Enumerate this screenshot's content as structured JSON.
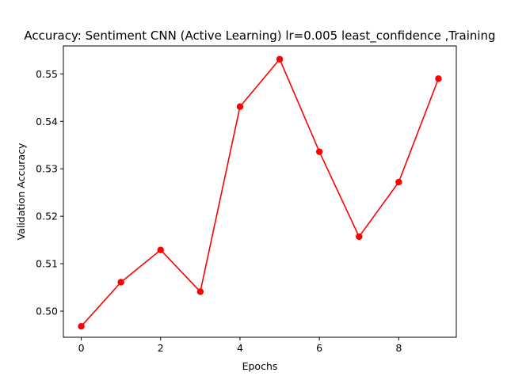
{
  "chart_data": {
    "type": "line",
    "title": "Accuracy: Sentiment CNN (Active Learning) lr=0.005 least_confidence ,Training",
    "xlabel": "Epochs",
    "ylabel": "Validation Accuracy",
    "x": [
      0,
      1,
      2,
      3,
      4,
      5,
      6,
      7,
      8,
      9
    ],
    "series": [
      {
        "values": [
          0.4968,
          0.5061,
          0.5129,
          0.5041,
          0.5431,
          0.5531,
          0.5336,
          0.5157,
          0.5272,
          0.549
        ],
        "color": "#ff0000",
        "marker": "circle"
      }
    ],
    "xlim": [
      -0.45,
      9.45
    ],
    "ylim": [
      0.4945,
      0.5559
    ],
    "xticks": [
      0,
      2,
      4,
      6,
      8
    ],
    "yticks": [
      0.5,
      0.51,
      0.52,
      0.53,
      0.54,
      0.55
    ],
    "xtick_labels": [
      "0",
      "2",
      "4",
      "6",
      "8"
    ],
    "ytick_labels": [
      "0.50",
      "0.51",
      "0.52",
      "0.53",
      "0.54",
      "0.55"
    ],
    "grid": false,
    "legend": "none"
  }
}
